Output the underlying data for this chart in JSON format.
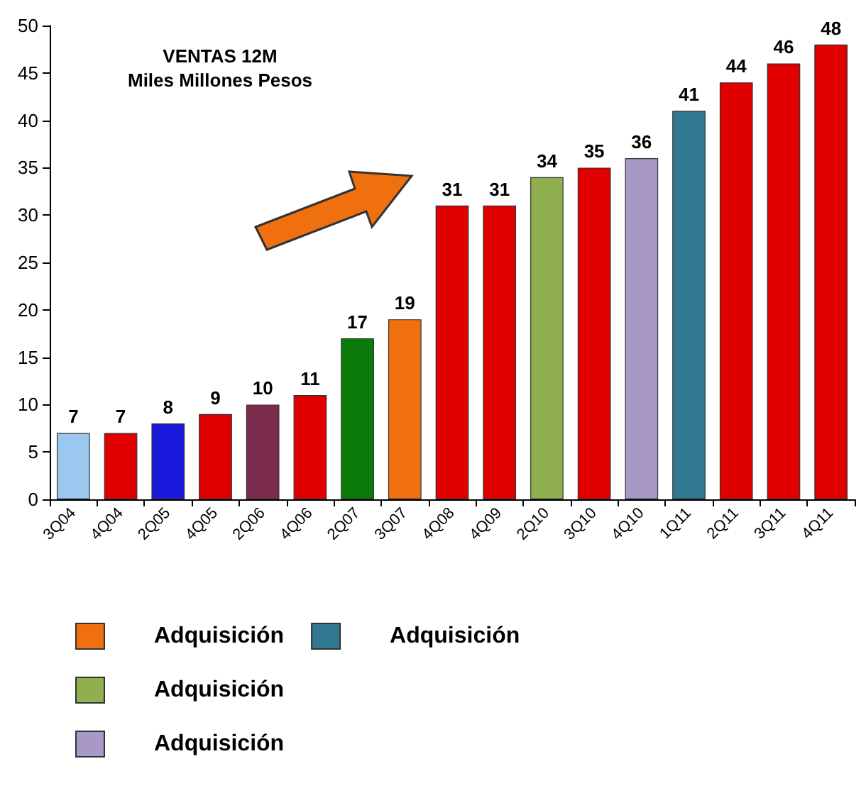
{
  "chart_data": {
    "type": "bar",
    "title": "VENTAS 12M",
    "subtitle": "Miles Millones Pesos",
    "categories": [
      "3Q04",
      "4Q04",
      "2Q05",
      "4Q05",
      "2Q06",
      "4Q06",
      "2Q07",
      "3Q07",
      "4Q08",
      "4Q09",
      "2Q10",
      "3Q10",
      "4Q10",
      "1Q11",
      "2Q11",
      "3Q11",
      "4Q11"
    ],
    "series": [
      {
        "colors": [
          "#9cc8f0",
          "#e00000",
          "#1a1adc",
          "#e00000",
          "#7a2a4a",
          "#e00000",
          "#0a7a0a",
          null,
          "#e00000",
          "#e00000",
          null,
          "#e00000",
          null,
          null,
          "#e00000",
          "#e00000",
          "#e00000"
        ],
        "values": [
          7,
          7,
          8,
          9,
          10,
          11,
          17,
          null,
          31,
          31,
          null,
          35,
          null,
          null,
          44,
          46,
          48
        ]
      },
      {
        "name": "Adquisición",
        "color": "#f07010",
        "values": [
          null,
          null,
          null,
          null,
          null,
          null,
          null,
          19,
          null,
          null,
          null,
          null,
          null,
          null,
          null,
          null,
          null
        ]
      },
      {
        "name": "Adquisición",
        "color": "#90b050",
        "values": [
          null,
          null,
          null,
          null,
          null,
          null,
          null,
          null,
          null,
          null,
          34,
          null,
          null,
          null,
          null,
          null,
          null
        ]
      },
      {
        "name": "Adquisición",
        "color": "#a898c8",
        "values": [
          null,
          null,
          null,
          null,
          null,
          null,
          null,
          null,
          null,
          null,
          null,
          null,
          36,
          null,
          null,
          null,
          null
        ]
      },
      {
        "name": "Adquisición",
        "color": "#307890",
        "values": [
          null,
          null,
          null,
          null,
          null,
          null,
          null,
          null,
          null,
          null,
          null,
          null,
          null,
          41,
          null,
          null,
          null
        ]
      }
    ],
    "stacked": true,
    "data_labels": true,
    "ylim": [
      0,
      50
    ],
    "yticks": [
      0,
      5,
      10,
      15,
      20,
      25,
      30,
      35,
      40,
      45,
      50
    ],
    "grid": false,
    "legend": "bottom"
  }
}
